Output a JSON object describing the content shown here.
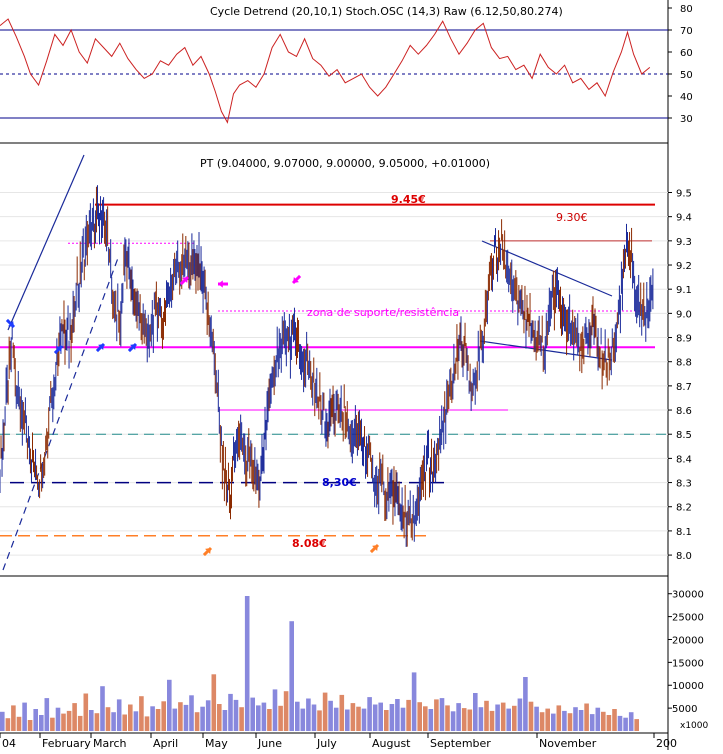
{
  "indicator_panel": {
    "header": "Cycle Detrend (20,10,1) Stoch.OSC (14,3) Raw (6.12,50,80.274)",
    "ylim": [
      20,
      80
    ],
    "ticks": [
      30,
      40,
      50,
      60,
      70,
      80
    ],
    "upper_band": 70,
    "lower_band": 30,
    "mid_line": 50
  },
  "price_panel": {
    "header": "PT (9.04000, 9.07000, 9.00000, 9.05000, +0.01000)",
    "ylim": [
      7.93,
      9.56
    ],
    "ticks": [
      "8.0",
      "8.1",
      "8.2",
      "8.3",
      "8.4",
      "8.5",
      "8.6",
      "8.7",
      "8.8",
      "8.9",
      "9.0",
      "9.1",
      "9.2",
      "9.3",
      "9.4",
      "9.5"
    ],
    "annotations": {
      "resistance_top": "9.45€",
      "resistance_right": "9.30€",
      "support_mid": "8,30€",
      "support_low": "8.08€",
      "zone_label": "zona de suporte/resistência"
    },
    "levels": {
      "top": 9.45,
      "upper_dotted": 9.29,
      "right_top": 9.3,
      "zone_dotted": 9.01,
      "zone": 8.86,
      "mid": 8.6,
      "teal": 8.5,
      "support": 8.3,
      "low": 8.08
    }
  },
  "volume_panel": {
    "ylim": [
      0,
      33000
    ],
    "ticks": [
      "5000",
      "10000",
      "15000",
      "20000",
      "25000",
      "30000"
    ],
    "unit": "x1000"
  },
  "x_axis": {
    "labels": [
      "04",
      "February",
      "March",
      "April",
      "May",
      "June",
      "July",
      "August",
      "September",
      "November",
      "200"
    ]
  },
  "colors": {
    "price_up": "#1a2a9a",
    "price_down": "#8b2a00",
    "osc_line": "#cc2222",
    "band": "#00008b",
    "resistance": "#dd0000",
    "zone": "#ff00ff",
    "teal": "#228b8b",
    "support": "#000080",
    "low_support": "#ff7f27",
    "vol_up": "#8888dd",
    "vol_down": "#dd8866",
    "arrow_blue": "#1e3cff",
    "arrow_magenta": "#ff00ff",
    "arrow_orange": "#ff7f27"
  },
  "chart_data": [
    {
      "type": "line",
      "name": "Oscillator",
      "x": [
        0,
        8,
        16,
        24,
        30,
        38,
        46,
        54,
        62,
        70,
        78,
        86,
        94,
        102,
        110,
        118,
        126,
        134,
        142,
        150,
        158,
        166,
        174,
        182,
        190,
        198,
        206,
        212,
        218,
        224,
        230,
        236,
        244,
        252,
        260,
        268,
        276,
        284,
        292,
        300,
        308,
        316,
        324,
        332,
        340,
        348,
        356,
        364,
        372,
        380,
        388,
        396,
        404,
        412,
        420,
        428,
        436,
        444,
        452,
        460,
        468,
        476,
        484,
        492,
        500,
        508,
        516,
        524,
        532,
        540,
        548,
        556,
        564,
        572,
        580,
        588,
        596,
        604,
        612,
        618,
        624,
        632,
        640
      ],
      "values": [
        72,
        75,
        67,
        58,
        50,
        45,
        56,
        68,
        63,
        70,
        60,
        55,
        66,
        62,
        58,
        64,
        57,
        52,
        48,
        50,
        56,
        54,
        59,
        62,
        54,
        58,
        50,
        42,
        33,
        28,
        41,
        45,
        47,
        44,
        50,
        62,
        68,
        60,
        58,
        66,
        57,
        54,
        49,
        52,
        46,
        48,
        50,
        44,
        40,
        44,
        50,
        56,
        63,
        59,
        63,
        68,
        74,
        66,
        59,
        64,
        70,
        73,
        62,
        57,
        58,
        52,
        54,
        48,
        59,
        53,
        50,
        54,
        46,
        48,
        43,
        46,
        40,
        51,
        60,
        69,
        59,
        50,
        53
      ]
    },
    {
      "type": "bar",
      "name": "Price",
      "ylim": [
        7.93,
        9.56
      ],
      "points": [
        [
          0,
          8.35
        ],
        [
          6,
          8.62
        ],
        [
          12,
          8.88
        ],
        [
          18,
          8.65
        ],
        [
          24,
          8.55
        ],
        [
          30,
          8.4
        ],
        [
          38,
          8.32
        ],
        [
          44,
          8.42
        ],
        [
          50,
          8.65
        ],
        [
          56,
          8.78
        ],
        [
          62,
          8.95
        ],
        [
          68,
          8.9
        ],
        [
          74,
          9.05
        ],
        [
          80,
          9.2
        ],
        [
          86,
          9.3
        ],
        [
          92,
          9.35
        ],
        [
          96,
          9.42
        ],
        [
          100,
          9.4
        ],
        [
          106,
          9.3
        ],
        [
          112,
          9.05
        ],
        [
          118,
          8.95
        ],
        [
          124,
          9.25
        ],
        [
          130,
          9.1
        ],
        [
          136,
          9.0
        ],
        [
          142,
          8.95
        ],
        [
          148,
          8.9
        ],
        [
          154,
          9.02
        ],
        [
          160,
          8.95
        ],
        [
          166,
          9.1
        ],
        [
          172,
          9.15
        ],
        [
          178,
          9.2
        ],
        [
          184,
          9.22
        ],
        [
          190,
          9.18
        ],
        [
          196,
          9.2
        ],
        [
          202,
          9.05
        ],
        [
          208,
          8.92
        ],
        [
          214,
          8.7
        ],
        [
          220,
          8.35
        ],
        [
          226,
          8.22
        ],
        [
          230,
          8.45
        ],
        [
          236,
          8.52
        ],
        [
          242,
          8.38
        ],
        [
          248,
          8.4
        ],
        [
          254,
          8.3
        ],
        [
          260,
          8.45
        ],
        [
          266,
          8.65
        ],
        [
          272,
          8.78
        ],
        [
          278,
          8.88
        ],
        [
          284,
          8.86
        ],
        [
          290,
          8.92
        ],
        [
          296,
          8.82
        ],
        [
          302,
          8.78
        ],
        [
          308,
          8.7
        ],
        [
          314,
          8.65
        ],
        [
          320,
          8.55
        ],
        [
          326,
          8.58
        ],
        [
          332,
          8.6
        ],
        [
          338,
          8.6
        ],
        [
          344,
          8.52
        ],
        [
          350,
          8.5
        ],
        [
          356,
          8.45
        ],
        [
          362,
          8.42
        ],
        [
          368,
          8.35
        ],
        [
          374,
          8.3
        ],
        [
          380,
          8.25
        ],
        [
          386,
          8.28
        ],
        [
          392,
          8.22
        ],
        [
          398,
          8.15
        ],
        [
          404,
          8.12
        ],
        [
          410,
          8.18
        ],
        [
          416,
          8.3
        ],
        [
          422,
          8.38
        ],
        [
          428,
          8.35
        ],
        [
          434,
          8.5
        ],
        [
          440,
          8.6
        ],
        [
          446,
          8.72
        ],
        [
          452,
          8.9
        ],
        [
          458,
          8.85
        ],
        [
          464,
          8.7
        ],
        [
          470,
          8.75
        ],
        [
          476,
          8.9
        ],
        [
          482,
          9.15
        ],
        [
          488,
          9.25
        ],
        [
          494,
          9.3
        ],
        [
          500,
          9.2
        ],
        [
          506,
          9.1
        ],
        [
          512,
          9.05
        ],
        [
          518,
          8.98
        ],
        [
          524,
          8.95
        ],
        [
          530,
          8.9
        ],
        [
          536,
          8.85
        ],
        [
          542,
          9.05
        ],
        [
          548,
          9.1
        ],
        [
          554,
          9.0
        ],
        [
          560,
          8.95
        ],
        [
          566,
          8.9
        ],
        [
          572,
          8.85
        ],
        [
          578,
          8.9
        ],
        [
          584,
          8.95
        ],
        [
          590,
          8.85
        ],
        [
          596,
          8.8
        ],
        [
          602,
          8.85
        ],
        [
          608,
          8.95
        ],
        [
          612,
          9.1
        ],
        [
          616,
          9.25
        ],
        [
          620,
          9.3
        ],
        [
          624,
          9.15
        ],
        [
          628,
          9.05
        ],
        [
          632,
          9.0
        ],
        [
          636,
          8.98
        ],
        [
          640,
          9.05
        ],
        [
          644,
          9.05
        ]
      ]
    },
    {
      "type": "bar",
      "name": "Volume",
      "ylim": [
        0,
        33000
      ],
      "values": [
        4200,
        2800,
        5600,
        3100,
        6200,
        2400,
        4800,
        3500,
        7200,
        2900,
        5100,
        3800,
        4400,
        6100,
        3300,
        8200,
        4600,
        3900,
        9800,
        5200,
        4100,
        6900,
        3600,
        5800,
        4300,
        7600,
        3200,
        5400,
        4800,
        6500,
        11200,
        4900,
        6300,
        5700,
        7800,
        4100,
        5300,
        6700,
        12400,
        5900,
        4600,
        8100,
        6800,
        5200,
        29500,
        7300,
        5600,
        6200,
        4800,
        9100,
        5500,
        8700,
        24000,
        6400,
        4900,
        7100,
        5800,
        4500,
        8400,
        6600,
        5100,
        7900,
        4700,
        6100,
        5300,
        4900,
        7400,
        5800,
        6200,
        4600,
        5900,
        7000,
        5100,
        6800,
        12800,
        6300,
        5400,
        4800,
        6900,
        7200,
        5600,
        4300,
        6100,
        5000,
        4700,
        8300,
        5200,
        6600,
        4400,
        5800,
        6200,
        4900,
        5500,
        7100,
        11800,
        6400,
        5300,
        4100,
        4900,
        3800,
        5600,
        4400,
        3900,
        5200,
        4600,
        6000,
        3700,
        5100,
        4200,
        3500,
        4800,
        3300,
        2900,
        4100,
        2600
      ]
    }
  ]
}
